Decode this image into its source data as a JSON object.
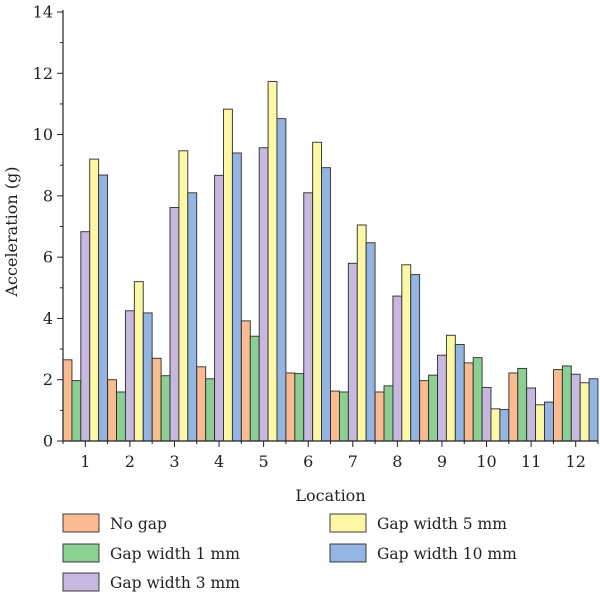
{
  "chart_data": {
    "type": "bar",
    "xlabel": "Location",
    "ylabel": "Acceleration (g)",
    "ylim": [
      0,
      14
    ],
    "yticks": [
      "0",
      "2",
      "4",
      "6",
      "8",
      "10",
      "12",
      "14"
    ],
    "categories": [
      "1",
      "2",
      "3",
      "4",
      "5",
      "6",
      "7",
      "8",
      "9",
      "10",
      "11",
      "12"
    ],
    "series": [
      {
        "name": "No gap",
        "color": "#f9bb8f",
        "values": [
          2.65,
          2.0,
          2.7,
          2.42,
          3.92,
          2.22,
          1.63,
          1.6,
          1.97,
          2.55,
          2.22,
          2.33
        ]
      },
      {
        "name": "Gap width 1 mm",
        "color": "#8ccf93",
        "values": [
          1.97,
          1.6,
          2.13,
          2.03,
          3.42,
          2.2,
          1.6,
          1.8,
          2.15,
          2.72,
          2.37,
          2.45
        ]
      },
      {
        "name": "Gap width 3 mm",
        "color": "#c6b8de",
        "values": [
          6.83,
          4.25,
          7.62,
          8.67,
          9.57,
          8.1,
          5.8,
          4.73,
          2.8,
          1.75,
          1.73,
          2.18
        ]
      },
      {
        "name": "Gap width 5 mm",
        "color": "#fcf8a6",
        "values": [
          9.2,
          5.2,
          9.47,
          10.83,
          11.73,
          9.75,
          7.05,
          5.75,
          3.45,
          1.05,
          1.18,
          1.9
        ]
      },
      {
        "name": "Gap width 10 mm",
        "color": "#94b5e1",
        "values": [
          8.68,
          4.18,
          8.1,
          9.4,
          10.52,
          8.92,
          6.47,
          5.43,
          3.15,
          1.03,
          1.27,
          2.03
        ]
      }
    ],
    "legend_position": "bottom",
    "legend_columns": [
      [
        0,
        1,
        2
      ],
      [
        3,
        4
      ]
    ],
    "grid": false
  }
}
